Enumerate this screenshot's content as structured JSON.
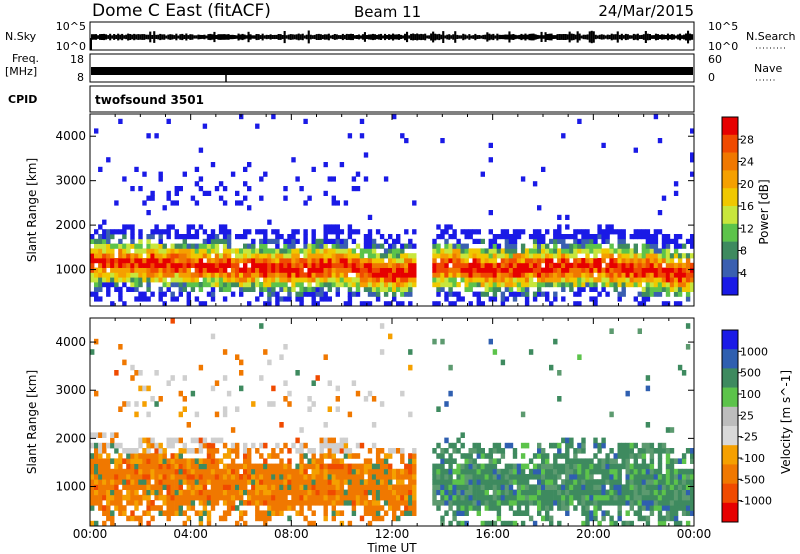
{
  "header": {
    "radar": "Dome C East (fitACF)",
    "beam": "Beam 11",
    "date": "24/Mar/2015"
  },
  "strip": {
    "nsky_label": "N.Sky",
    "nsky_ticks": [
      "10^5",
      "10^0"
    ],
    "nsearch_label": "N.Search",
    "nsearch_ticks": [
      "10^5",
      "10^0"
    ],
    "freq_label": "Freq.",
    "freq_unit": "[MHz]",
    "freq_ticks": [
      "18",
      "8"
    ],
    "nave_label": "Nave",
    "nave_ticks": [
      "60",
      "0"
    ],
    "cpid_label": "CPID",
    "cpid_value": "twofsound 3501"
  },
  "colors": {
    "power": [
      "#1a1ae6",
      "#3a5fb0",
      "#3e8a5f",
      "#5cc34a",
      "#c8e63c",
      "#f0c800",
      "#f5a000",
      "#f07800",
      "#f04a00",
      "#e60000"
    ],
    "velocity": [
      "#e60000",
      "#f04a00",
      "#f07800",
      "#f5a000",
      "#d9d9d9",
      "#bdbdbd",
      "#5cc34a",
      "#3e8a5f",
      "#2f5fb0",
      "#1a1ae6"
    ]
  },
  "chart_data": [
    {
      "type": "heatmap",
      "panel": "power",
      "ylabel": "Slant Range [km]",
      "y_ticks": [
        1000,
        2000,
        3000,
        4000
      ],
      "ylim": [
        180,
        4500
      ],
      "xlim": [
        "00:00",
        "24:00"
      ],
      "colorbar_label": "Power [dB]",
      "colorbar_ticks": [
        "4",
        "8",
        "12",
        "16",
        "20",
        "24",
        "28"
      ],
      "colorbar_range": [
        0,
        30
      ],
      "main_band_km": [
        [
          0,
          1200
        ],
        [
          4,
          1100
        ],
        [
          8,
          1000
        ],
        [
          10,
          1100
        ],
        [
          12,
          900
        ],
        [
          14,
          1100
        ],
        [
          16,
          1000
        ],
        [
          18,
          1050
        ],
        [
          20,
          1100
        ],
        [
          22,
          1000
        ],
        [
          24,
          900
        ]
      ]
    },
    {
      "type": "heatmap",
      "panel": "velocity",
      "ylabel": "Slant Range [km]",
      "y_ticks": [
        1000,
        2000,
        3000,
        4000
      ],
      "ylim": [
        180,
        4500
      ],
      "xlim": [
        "00:00",
        "24:00"
      ],
      "colorbar_label": "Velocity [m s^-1]",
      "colorbar_ticks": [
        "1000",
        "500",
        "100",
        "25",
        "-25",
        "-100",
        "-500",
        "-1000"
      ],
      "colorbar_range": [
        -1000,
        1000
      ],
      "xlabel": "Time UT",
      "x_ticks": [
        "00:00",
        "04:00",
        "08:00",
        "12:00",
        "16:00",
        "20:00",
        "00:00"
      ]
    }
  ]
}
